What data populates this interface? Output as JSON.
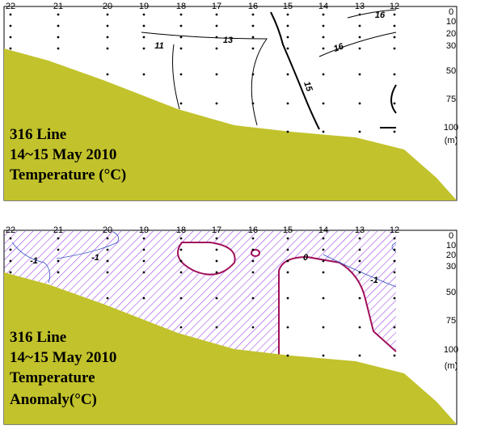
{
  "stations": [
    "22",
    "21",
    "20",
    "19",
    "18",
    "17",
    "16",
    "15",
    "14",
    "13",
    "12"
  ],
  "depths": [
    "0",
    "10",
    "20",
    "30",
    "50",
    "75",
    "100"
  ],
  "depth_unit": "(m)",
  "panels": [
    {
      "caption": [
        "316 Line",
        "14~15 May 2010",
        "Temperature (°C)"
      ],
      "contour_labels": [
        "16",
        "13",
        "11",
        "16",
        "15"
      ]
    },
    {
      "caption": [
        "316 Line",
        "14~15 May 2010",
        "Temperature",
        "Anomaly(°C)"
      ],
      "contour_labels": [
        "-1",
        "-1",
        "0",
        "-1"
      ]
    }
  ]
}
